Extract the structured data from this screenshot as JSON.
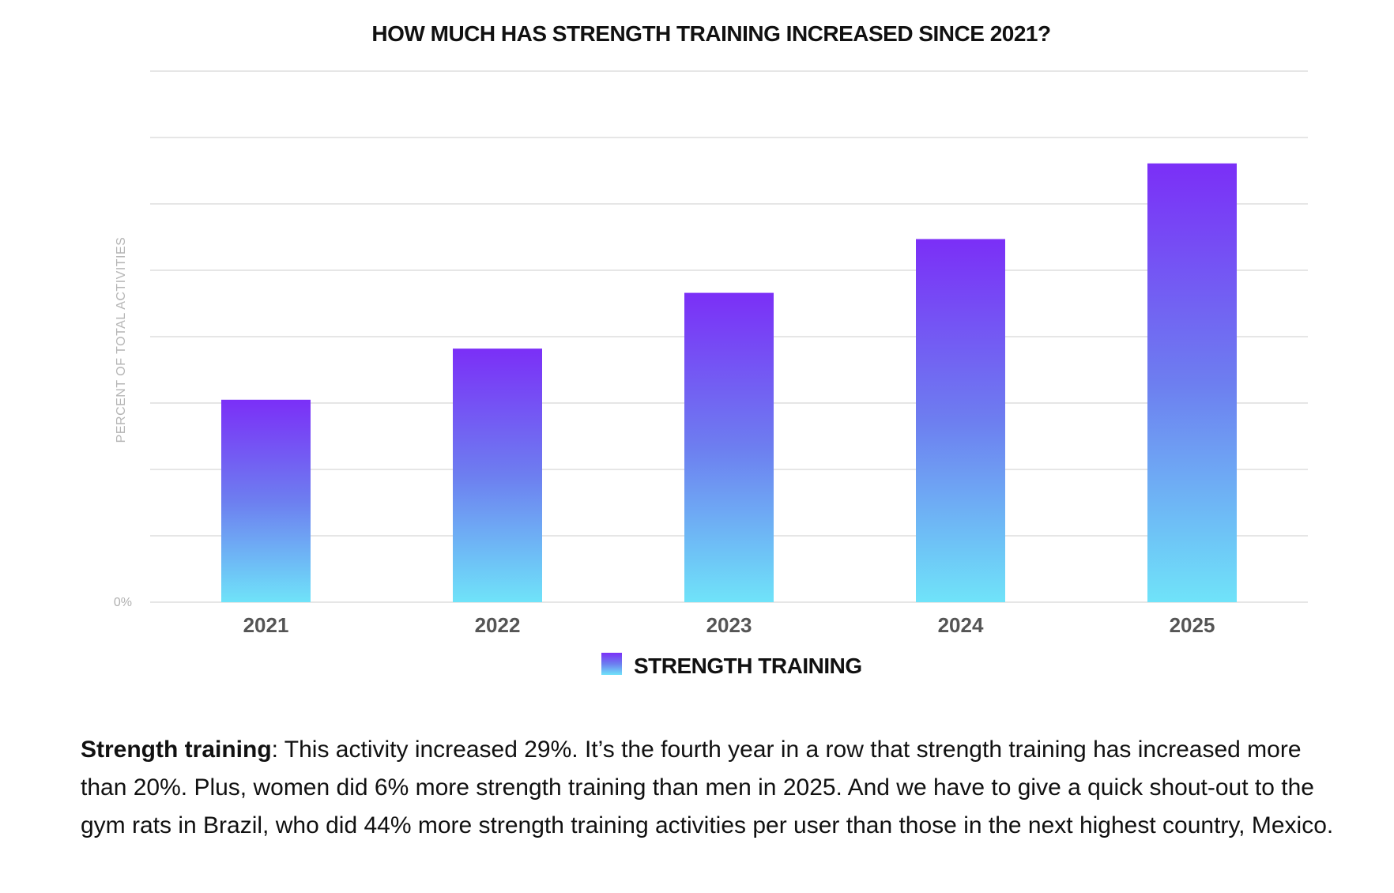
{
  "chart_data": {
    "type": "bar",
    "title": "HOW MUCH HAS STRENGTH TRAINING INCREASED SINCE 2021?",
    "ylabel": "PERCENT OF TOTAL ACTIVITIES",
    "xlabel": "",
    "y_tick_labels": [
      "0%"
    ],
    "categories": [
      "2021",
      "2022",
      "2023",
      "2024",
      "2025"
    ],
    "series": [
      {
        "name": "STRENGTH TRAINING",
        "values": [
          3.05,
          3.82,
          4.66,
          5.47,
          6.61
        ]
      }
    ],
    "ylim": [
      0,
      8
    ],
    "grid_lines": [
      1,
      2,
      3,
      4,
      5,
      6,
      7,
      8
    ],
    "grid": true,
    "legend_position": "bottom-center",
    "colors": {
      "bar_top": "#7b2ff7",
      "bar_mid": "#6d7ef0",
      "bar_bottom": "#6fe3f9",
      "grid": "#dedede"
    }
  },
  "description": {
    "lead": "Strength training",
    "text": ": This activity increased 29%. It’s the fourth year in a row that strength training has increased more than 20%. Plus, women did 6% more strength training than men in 2025. And we have to give a quick shout-out to the gym rats in Brazil, who did 44% more strength training activities per user than those in the next highest country, Mexico."
  }
}
